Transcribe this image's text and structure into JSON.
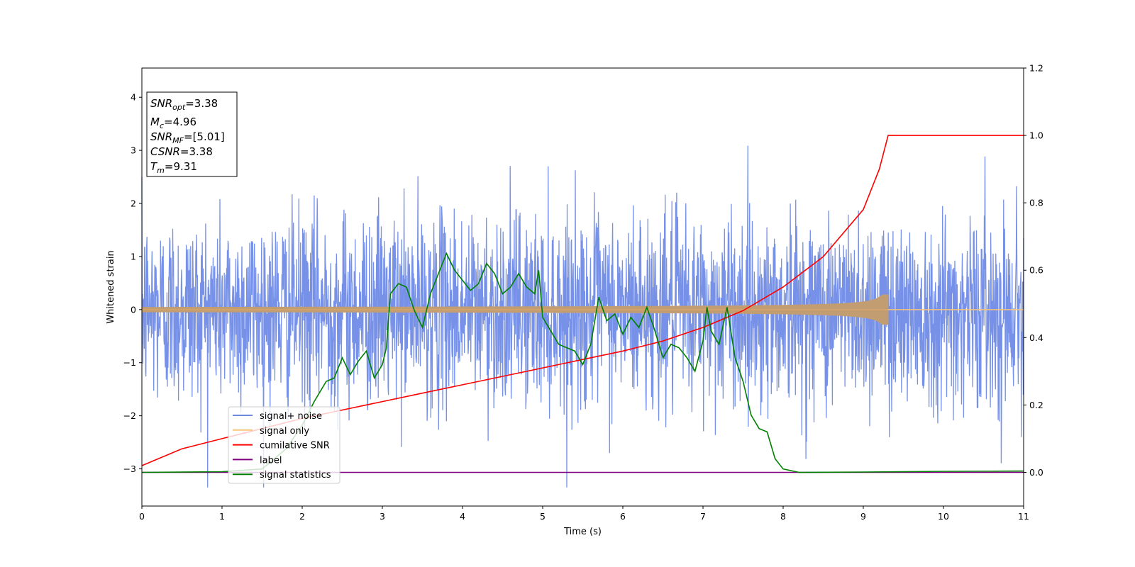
{
  "chart_data": {
    "type": "line",
    "xlabel": "Time (s)",
    "ylabel": "Whitened strain",
    "xlim": [
      0,
      11
    ],
    "ylim": [
      -3.7,
      4.55
    ],
    "y2lim": [
      -0.1,
      1.2
    ],
    "xticks": [
      "0",
      "1",
      "2",
      "3",
      "4",
      "5",
      "6",
      "7",
      "8",
      "9",
      "10",
      "11"
    ],
    "yticks": [
      "−3",
      "−2",
      "−1",
      "0",
      "1",
      "2",
      "3",
      "4"
    ],
    "y2ticks": [
      "0.0",
      "0.2",
      "0.4",
      "0.6",
      "0.8",
      "1.0",
      "1.2"
    ],
    "grid": false,
    "legend_position": "lower-left",
    "info_box": {
      "lines": [
        {
          "sym": "SNR",
          "sub": "opt",
          "rest": "=3.38"
        },
        {
          "sym": "M",
          "sub": "c",
          "rest": "=4.96"
        },
        {
          "sym": "SNR",
          "sub": "MF",
          "rest": "=[5.01]"
        },
        {
          "sym": "CSNR",
          "sub": "",
          "rest": "=3.38"
        },
        {
          "sym": "T",
          "sub": "m",
          "rest": "=9.31"
        }
      ]
    },
    "series": [
      {
        "name": "signal+ noise",
        "color": "#6f8be6",
        "axis": "left",
        "description": "white noise with std ~0.9, duration 0-11 s",
        "noise_std": 0.9
      },
      {
        "name": "signal only",
        "color": "#f5c27a",
        "axis": "left",
        "chirp_end_time": 9.31,
        "peak_amplitude": 0.28
      },
      {
        "name": "cumilative SNR",
        "color": "#ff0000",
        "axis": "right",
        "x": [
          0,
          0.5,
          1,
          1.5,
          2,
          2.5,
          3,
          3.5,
          4,
          4.5,
          5,
          5.5,
          6,
          6.5,
          7,
          7.5,
          8,
          8.5,
          9,
          9.2,
          9.31,
          11
        ],
        "y": [
          0.02,
          0.07,
          0.1,
          0.13,
          0.16,
          0.185,
          0.21,
          0.235,
          0.26,
          0.285,
          0.31,
          0.335,
          0.36,
          0.39,
          0.43,
          0.48,
          0.55,
          0.64,
          0.78,
          0.9,
          1.0,
          1.0
        ]
      },
      {
        "name": "label",
        "color": "#800080",
        "axis": "right",
        "x": [
          0,
          11
        ],
        "y": [
          0,
          0
        ]
      },
      {
        "name": "signal statistics",
        "color": "#008000",
        "axis": "right",
        "x": [
          0,
          1,
          1.5,
          1.8,
          2.0,
          2.15,
          2.3,
          2.4,
          2.5,
          2.6,
          2.7,
          2.8,
          2.9,
          3.0,
          3.05,
          3.1,
          3.2,
          3.3,
          3.4,
          3.5,
          3.6,
          3.7,
          3.8,
          3.9,
          4.0,
          4.1,
          4.2,
          4.3,
          4.4,
          4.5,
          4.6,
          4.7,
          4.8,
          4.9,
          4.95,
          5.0,
          5.1,
          5.2,
          5.3,
          5.4,
          5.5,
          5.6,
          5.7,
          5.8,
          5.9,
          6.0,
          6.1,
          6.2,
          6.3,
          6.4,
          6.5,
          6.6,
          6.7,
          6.8,
          6.9,
          7.0,
          7.05,
          7.1,
          7.2,
          7.3,
          7.4,
          7.5,
          7.6,
          7.7,
          7.8,
          7.9,
          8.0,
          8.2,
          9,
          10,
          11
        ],
        "y": [
          0.0,
          0.002,
          0.01,
          0.07,
          0.14,
          0.21,
          0.27,
          0.28,
          0.34,
          0.29,
          0.33,
          0.36,
          0.28,
          0.32,
          0.37,
          0.53,
          0.56,
          0.55,
          0.48,
          0.43,
          0.53,
          0.59,
          0.65,
          0.6,
          0.57,
          0.54,
          0.56,
          0.62,
          0.59,
          0.53,
          0.55,
          0.59,
          0.55,
          0.53,
          0.6,
          0.46,
          0.42,
          0.38,
          0.37,
          0.36,
          0.32,
          0.38,
          0.52,
          0.45,
          0.47,
          0.41,
          0.46,
          0.43,
          0.49,
          0.42,
          0.34,
          0.38,
          0.37,
          0.34,
          0.3,
          0.39,
          0.49,
          0.42,
          0.38,
          0.49,
          0.34,
          0.27,
          0.17,
          0.13,
          0.12,
          0.04,
          0.01,
          0.0,
          0.001,
          0.003,
          0.004
        ]
      }
    ]
  }
}
